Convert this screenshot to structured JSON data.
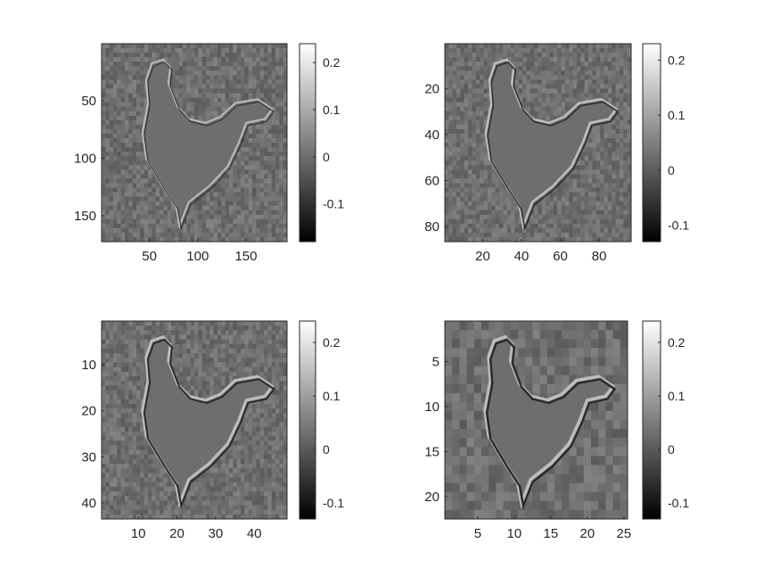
{
  "chart_data": [
    {
      "type": "heatmap",
      "colormap": "gray",
      "content": "rooster",
      "xticks": [
        50,
        100,
        150
      ],
      "yticks": [
        50,
        100,
        150
      ],
      "xlim": [
        0.5,
        192.5
      ],
      "ylim": [
        0.5,
        172.5
      ],
      "colorbar": {
        "ticks": [
          -0.1,
          0,
          0.1,
          0.2
        ],
        "range": [
          -0.18,
          0.24
        ]
      }
    },
    {
      "type": "heatmap",
      "colormap": "gray",
      "content": "rooster",
      "xticks": [
        20,
        40,
        60,
        80
      ],
      "yticks": [
        20,
        40,
        60,
        80
      ],
      "xlim": [
        0.5,
        96.5
      ],
      "ylim": [
        0.5,
        86.5
      ],
      "colorbar": {
        "ticks": [
          -0.1,
          0,
          0.1,
          0.2
        ],
        "range": [
          -0.13,
          0.23
        ]
      }
    },
    {
      "type": "heatmap",
      "colormap": "gray",
      "content": "rooster",
      "xticks": [
        10,
        20,
        30,
        40
      ],
      "yticks": [
        10,
        20,
        30,
        40
      ],
      "xlim": [
        0.5,
        48.5
      ],
      "ylim": [
        0.5,
        43.5
      ],
      "colorbar": {
        "ticks": [
          -0.1,
          0,
          0.1,
          0.2
        ],
        "range": [
          -0.13,
          0.24
        ]
      }
    },
    {
      "type": "heatmap",
      "colormap": "gray",
      "content": "rooster",
      "xticks": [
        5,
        10,
        15,
        20,
        25
      ],
      "yticks": [
        5,
        10,
        15,
        20
      ],
      "xlim": [
        0.5,
        25.5
      ],
      "ylim": [
        0.5,
        22.5
      ],
      "colorbar": {
        "ticks": [
          -0.1,
          0,
          0.1,
          0.2
        ],
        "range": [
          -0.13,
          0.24
        ]
      }
    }
  ]
}
